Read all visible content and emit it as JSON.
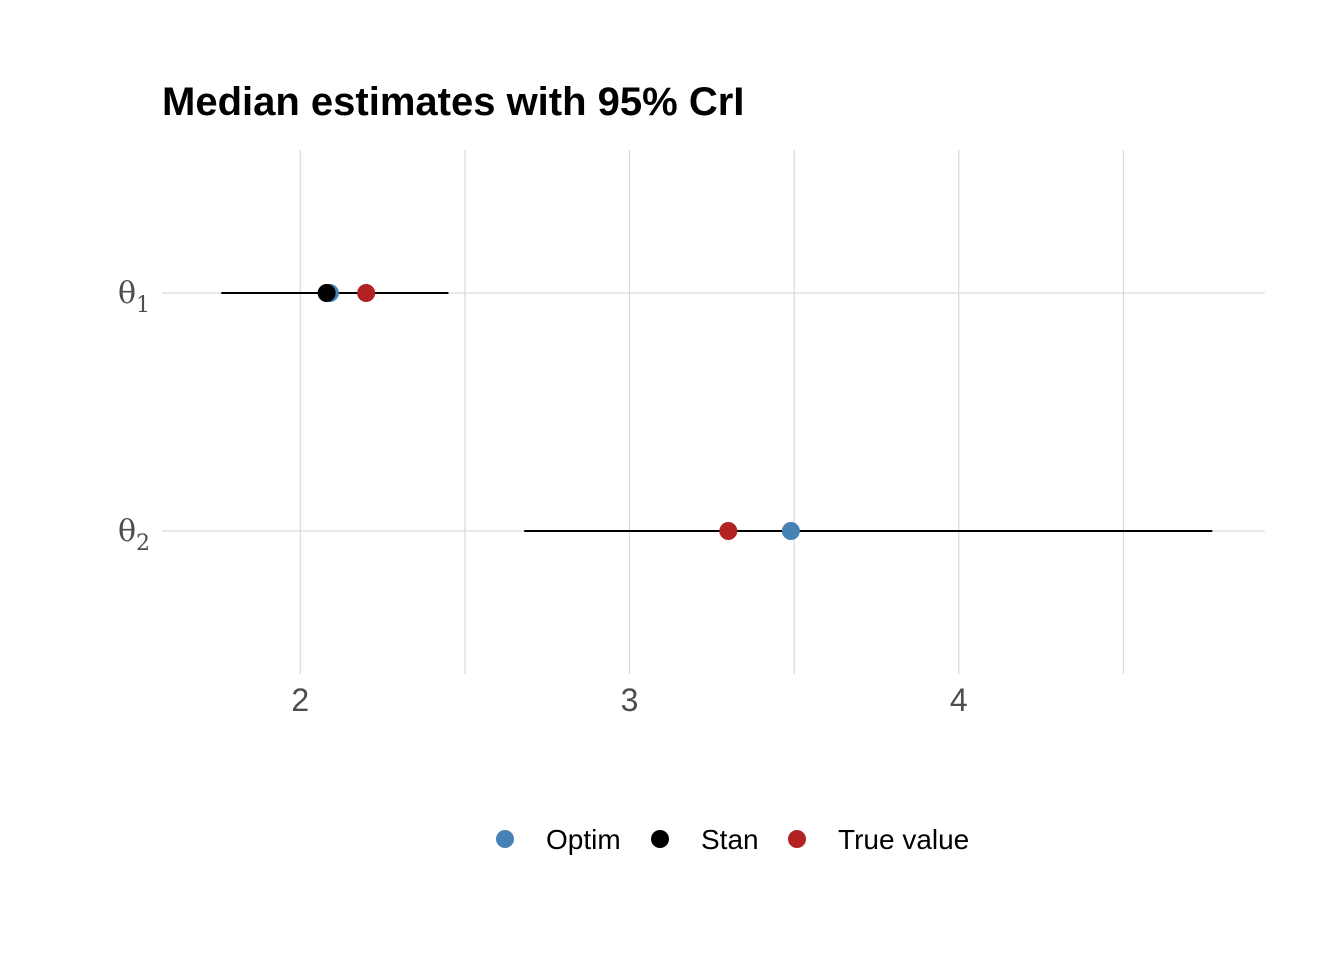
{
  "chart_data": {
    "type": "point-range",
    "title": "Median estimates with 95% CrI",
    "xlabel": "",
    "ylabel": "",
    "xlim": [
      1.58,
      4.93
    ],
    "x_ticks": [
      2,
      3,
      4
    ],
    "x_tick_labels": [
      "2",
      "3",
      "4"
    ],
    "x_minor_grid": [
      2.5,
      3.5,
      4.5
    ],
    "grid": true,
    "categories": [
      {
        "symbol": "θ",
        "subscript": "1"
      },
      {
        "symbol": "θ",
        "subscript": "2"
      }
    ],
    "intervals": [
      {
        "category": 0,
        "lower": 1.76,
        "upper": 2.45
      },
      {
        "category": 1,
        "lower": 2.68,
        "upper": 4.77
      }
    ],
    "series": [
      {
        "name": "Optim",
        "color": "#4682b4",
        "values": [
          2.09,
          3.49
        ]
      },
      {
        "name": "Stan",
        "color": "#000000",
        "values": [
          2.08,
          null
        ]
      },
      {
        "name": "True value",
        "color": "#b22222",
        "values": [
          2.2,
          3.3
        ]
      }
    ],
    "legend_position": "bottom"
  }
}
